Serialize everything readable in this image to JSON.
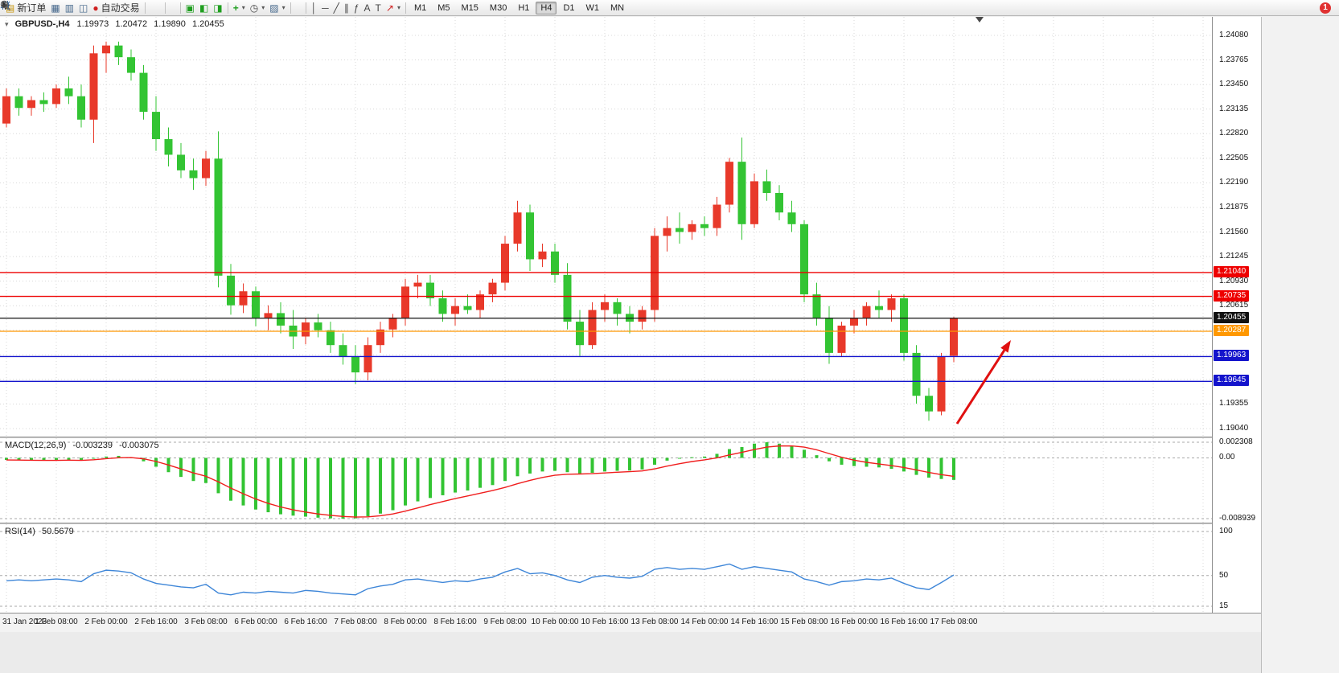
{
  "toolbar": {
    "new_order_label": "新订单",
    "auto_trading_label": "自动交易",
    "timeframes": [
      "M1",
      "M5",
      "M15",
      "M30",
      "H1",
      "H4",
      "D1",
      "W1",
      "MN"
    ],
    "active_timeframe": "H4",
    "notification_count": "1",
    "icons": {
      "new_order": "▤",
      "profiles": "▦",
      "data_window": "▥",
      "navigator": "◫",
      "auto_trading": "●",
      "new_chart": "▣",
      "tile_windows": "◧",
      "cascade_windows": "◨",
      "indicators": "+",
      "periods": "◷",
      "templates": "▨",
      "vline": "│",
      "hline": "─",
      "trendline": "╱",
      "channel": "∥",
      "fibonacci": "ƒ",
      "text": "A",
      "label": "T",
      "arrows": "↗",
      "caret": "▾"
    }
  },
  "theme": {
    "bull_color": "#e8392a",
    "bear_color": "#33c433",
    "macd_histogram_color": "#33c433",
    "macd_signal_color": "#f01e1e",
    "rsi_line_color": "#3e86d8",
    "grid_color": "#d8d8d8",
    "level_dash_color": "#a8a8a8"
  },
  "chart_data": {
    "type": "candlestick",
    "symbol": "GBPUSD",
    "period": "H4",
    "title": "GBPUSD-,H4",
    "ohlc_current": {
      "open": "1.19973",
      "high": "1.20472",
      "low": "1.19890",
      "close": "1.20455"
    },
    "price_axis": {
      "top": 1.24317,
      "bottom": 1.18937,
      "labels": [
        "1.24080",
        "1.23765",
        "1.23450",
        "1.23135",
        "1.22820",
        "1.22505",
        "1.22190",
        "1.21875",
        "1.21560",
        "1.21245",
        "1.20930",
        "1.20615",
        "1.20300",
        "1.19985",
        "1.19670",
        "1.19355",
        "1.19040"
      ]
    },
    "time_axis": {
      "labels": [
        "31 Jan 2023",
        "1 Feb 08:00",
        "2 Feb 00:00",
        "2 Feb 16:00",
        "3 Feb 08:00",
        "6 Feb 00:00",
        "6 Feb 16:00",
        "7 Feb 08:00",
        "8 Feb 00:00",
        "8 Feb 16:00",
        "9 Feb 08:00",
        "10 Feb 00:00",
        "10 Feb 16:00",
        "13 Feb 08:00",
        "14 Feb 00:00",
        "14 Feb 16:00",
        "15 Feb 08:00",
        "16 Feb 00:00",
        "16 Feb 16:00",
        "17 Feb 08:00"
      ],
      "extra_grid_cols": 5
    },
    "candles": [
      [
        1.2295,
        1.234,
        1.229,
        1.233
      ],
      [
        1.233,
        1.234,
        1.2305,
        1.2315
      ],
      [
        1.2315,
        1.233,
        1.2305,
        1.2325
      ],
      [
        1.2325,
        1.2335,
        1.231,
        1.232
      ],
      [
        1.232,
        1.2345,
        1.2315,
        1.234
      ],
      [
        1.234,
        1.2355,
        1.232,
        1.233
      ],
      [
        1.233,
        1.2345,
        1.229,
        1.23
      ],
      [
        1.23,
        1.2395,
        1.227,
        1.2385
      ],
      [
        1.2385,
        1.24,
        1.236,
        1.2395
      ],
      [
        1.2395,
        1.24,
        1.237,
        1.238
      ],
      [
        1.238,
        1.239,
        1.235,
        1.236
      ],
      [
        1.236,
        1.237,
        1.23,
        1.231
      ],
      [
        1.231,
        1.233,
        1.226,
        1.2275
      ],
      [
        1.2275,
        1.229,
        1.224,
        1.2255
      ],
      [
        1.2255,
        1.227,
        1.2225,
        1.2235
      ],
      [
        1.2235,
        1.225,
        1.221,
        1.2225
      ],
      [
        1.2225,
        1.226,
        1.2215,
        1.225
      ],
      [
        1.225,
        1.2285,
        1.2085,
        1.21
      ],
      [
        1.21,
        1.2115,
        1.205,
        1.2062
      ],
      [
        1.2062,
        1.209,
        1.2052,
        1.208
      ],
      [
        1.208,
        1.2086,
        1.2035,
        1.2046
      ],
      [
        1.2046,
        1.2062,
        1.203,
        1.2052
      ],
      [
        1.2052,
        1.2066,
        1.2026,
        1.2036
      ],
      [
        1.2036,
        1.2056,
        1.2006,
        1.2022
      ],
      [
        1.2022,
        1.2046,
        1.2012,
        1.204
      ],
      [
        1.204,
        1.2051,
        1.2021,
        1.203
      ],
      [
        1.203,
        1.2041,
        1.2001,
        1.2011
      ],
      [
        1.2011,
        1.2026,
        1.1986,
        1.1996
      ],
      [
        1.1996,
        1.2011,
        1.1961,
        1.1976
      ],
      [
        1.1976,
        1.2021,
        1.1966,
        1.2011
      ],
      [
        1.2011,
        1.2041,
        1.2001,
        1.2031
      ],
      [
        1.2031,
        1.2051,
        1.2021,
        1.2046
      ],
      [
        1.2046,
        1.2096,
        1.2036,
        1.2086
      ],
      [
        1.2086,
        1.2101,
        1.2071,
        1.2091
      ],
      [
        1.2091,
        1.2101,
        1.2061,
        1.2071
      ],
      [
        1.2071,
        1.2081,
        1.2041,
        1.2051
      ],
      [
        1.2051,
        1.2071,
        1.2036,
        1.2061
      ],
      [
        1.2061,
        1.2076,
        1.2051,
        1.2056
      ],
      [
        1.2056,
        1.2081,
        1.2046,
        1.2076
      ],
      [
        1.2076,
        1.2096,
        1.2066,
        1.2091
      ],
      [
        1.2091,
        1.2151,
        1.2081,
        1.2141
      ],
      [
        1.2141,
        1.2196,
        1.2131,
        1.2181
      ],
      [
        1.2181,
        1.2191,
        1.2106,
        1.2121
      ],
      [
        1.2121,
        1.2141,
        1.2111,
        1.2131
      ],
      [
        1.2131,
        1.2141,
        1.2091,
        1.2101
      ],
      [
        1.2101,
        1.2116,
        1.2031,
        1.2041
      ],
      [
        1.2041,
        1.2056,
        1.1997,
        1.2011
      ],
      [
        1.2011,
        1.2066,
        1.2006,
        1.2056
      ],
      [
        1.2056,
        1.2076,
        1.2041,
        1.2066
      ],
      [
        1.2066,
        1.2071,
        1.2036,
        1.2051
      ],
      [
        1.2051,
        1.2061,
        1.2026,
        1.2041
      ],
      [
        1.2041,
        1.2061,
        1.2031,
        1.2056
      ],
      [
        1.2056,
        1.2161,
        1.2041,
        1.2151
      ],
      [
        1.2151,
        1.2176,
        1.2131,
        1.2161
      ],
      [
        1.2161,
        1.2181,
        1.2141,
        1.2156
      ],
      [
        1.2156,
        1.2171,
        1.2146,
        1.2166
      ],
      [
        1.2166,
        1.2176,
        1.2151,
        1.2161
      ],
      [
        1.2161,
        1.2201,
        1.2151,
        1.2191
      ],
      [
        1.2191,
        1.2251,
        1.2181,
        1.2246
      ],
      [
        1.2246,
        1.2277,
        1.2146,
        1.2166
      ],
      [
        1.2166,
        1.2231,
        1.2161,
        1.2221
      ],
      [
        1.2221,
        1.2236,
        1.2196,
        1.2206
      ],
      [
        1.2206,
        1.2216,
        1.2171,
        1.2181
      ],
      [
        1.2181,
        1.2196,
        1.2156,
        1.2166
      ],
      [
        1.2166,
        1.2171,
        1.2066,
        1.2076
      ],
      [
        1.2076,
        1.2091,
        1.2036,
        1.2046
      ],
      [
        1.2046,
        1.2061,
        1.1987,
        1.2001
      ],
      [
        1.2001,
        1.2041,
        1.1996,
        1.2036
      ],
      [
        1.2036,
        1.2056,
        1.2026,
        1.2046
      ],
      [
        1.2046,
        1.2066,
        1.2036,
        1.2061
      ],
      [
        1.2061,
        1.2081,
        1.2046,
        1.2056
      ],
      [
        1.2056,
        1.2076,
        1.2041,
        1.2071
      ],
      [
        1.2071,
        1.2076,
        1.1991,
        1.2001
      ],
      [
        1.2001,
        1.2011,
        1.1936,
        1.1946
      ],
      [
        1.1946,
        1.1956,
        1.1914,
        1.1926
      ],
      [
        1.1926,
        1.2001,
        1.1921,
        1.1996
      ],
      [
        1.19973,
        1.20472,
        1.1989,
        1.20455
      ]
    ],
    "hlines": [
      {
        "price": 1.2104,
        "label": "1.21040",
        "color": "#ee0000"
      },
      {
        "price": 1.20735,
        "label": "1.20735",
        "color": "#ee0000"
      },
      {
        "price": 1.20455,
        "label": "1.20455",
        "color": "#111111"
      },
      {
        "price": 1.20287,
        "label": "1.20287",
        "color": "#ff9800"
      },
      {
        "price": 1.19963,
        "label": "1.19963",
        "color": "#1414cc"
      },
      {
        "price": 1.19645,
        "label": "1.19645",
        "color": "#1414cc"
      }
    ],
    "indicators": [
      {
        "name": "MACD(12,26,9)",
        "values_text": [
          "-0.003239",
          "-0.003075"
        ],
        "scale": {
          "max": 0.002308,
          "min": -0.008939,
          "labels": [
            "0.002308",
            "0.00",
            "-0.008939"
          ]
        },
        "histogram_milli": [
          -0.3,
          -0.35,
          -0.4,
          -0.4,
          -0.35,
          -0.3,
          -0.4,
          -0.1,
          0.2,
          0.3,
          0.1,
          -0.5,
          -1.3,
          -2.1,
          -2.8,
          -3.4,
          -3.7,
          -5.2,
          -6.3,
          -7.0,
          -7.6,
          -8.0,
          -8.3,
          -8.5,
          -8.65,
          -8.8,
          -8.9,
          -8.94,
          -8.9,
          -8.6,
          -8.2,
          -7.7,
          -7.0,
          -6.4,
          -5.9,
          -5.5,
          -5.1,
          -4.8,
          -4.4,
          -4.0,
          -3.4,
          -2.7,
          -2.3,
          -2.0,
          -1.9,
          -2.1,
          -2.3,
          -2.2,
          -2.0,
          -1.9,
          -1.85,
          -1.7,
          -1.0,
          -0.4,
          -0.1,
          0.1,
          0.2,
          0.6,
          1.3,
          1.6,
          2.1,
          2.31,
          2.1,
          1.8,
          1.2,
          0.4,
          -0.5,
          -1.0,
          -1.2,
          -1.3,
          -1.4,
          -1.6,
          -2.0,
          -2.5,
          -2.9,
          -3.1,
          -3.24
        ]
      },
      {
        "name": "RSI(14)",
        "value_text": "50.5679",
        "levels": [
          100,
          50,
          15
        ],
        "scale_labels": [
          "100",
          "50",
          "15"
        ],
        "values": [
          44,
          45,
          44,
          45,
          46,
          45,
          43,
          52,
          56,
          55,
          53,
          46,
          41,
          39,
          37,
          36,
          40,
          30,
          28,
          31,
          30,
          32,
          31,
          30,
          33,
          32,
          30,
          29,
          28,
          35,
          38,
          40,
          45,
          46,
          44,
          42,
          44,
          43,
          46,
          48,
          54,
          58,
          52,
          53,
          50,
          45,
          42,
          48,
          50,
          48,
          47,
          49,
          57,
          59,
          57,
          58,
          57,
          60,
          63,
          57,
          60,
          58,
          56,
          54,
          46,
          43,
          39,
          43,
          44,
          46,
          45,
          47,
          41,
          36,
          34,
          42,
          50.57
        ]
      }
    ],
    "arrow_annotation": {
      "from": [
        1190,
        506
      ],
      "to": [
        1257,
        402
      ],
      "color": "#e01010"
    }
  }
}
